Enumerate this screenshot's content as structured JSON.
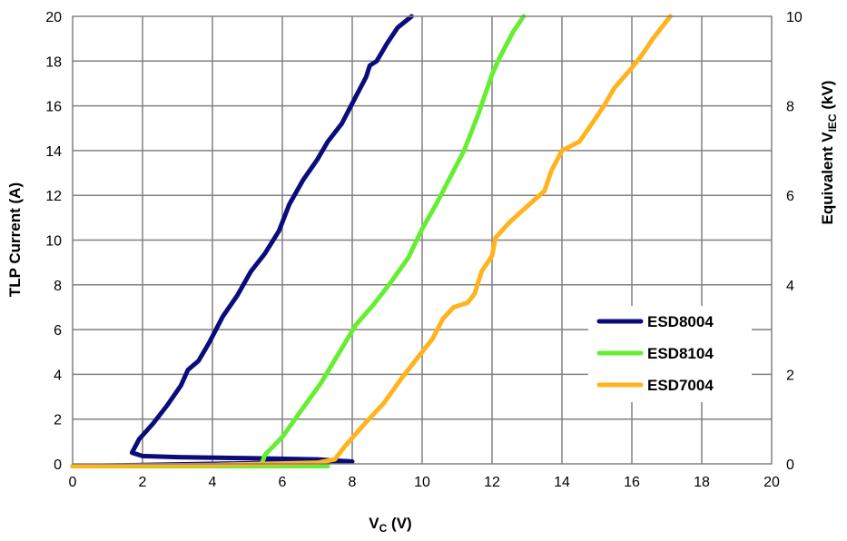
{
  "chart_data": {
    "type": "line",
    "xlabel_main": "V",
    "xlabel_sub": "C",
    "xlabel_unit": " (V)",
    "ylabel": "TLP Current (A)",
    "y2label_main": "Equivalent V",
    "y2label_sub": "IEC",
    "y2label_unit": " (kV)",
    "xlim": [
      0,
      20
    ],
    "ylim": [
      0,
      20
    ],
    "y2lim": [
      0,
      10
    ],
    "x_ticks": [
      0,
      2,
      4,
      6,
      8,
      10,
      12,
      14,
      16,
      18,
      20
    ],
    "y_ticks": [
      0,
      2,
      4,
      6,
      8,
      10,
      12,
      14,
      16,
      18,
      20
    ],
    "y2_ticks": [
      0,
      2,
      4,
      6,
      8,
      10
    ],
    "grid": true,
    "legend_position": "right",
    "series": [
      {
        "name": "ESD8004",
        "color": "#0b0c7c",
        "points": [
          [
            0,
            -0.1
          ],
          [
            2,
            -0.05
          ],
          [
            4,
            0
          ],
          [
            6,
            0.05
          ],
          [
            7.5,
            0.1
          ],
          [
            8,
            0.1
          ],
          [
            7,
            0.2
          ],
          [
            5,
            0.25
          ],
          [
            3,
            0.3
          ],
          [
            2,
            0.35
          ],
          [
            1.7,
            0.5
          ],
          [
            1.9,
            1.1
          ],
          [
            2.3,
            1.8
          ],
          [
            2.7,
            2.6
          ],
          [
            3.1,
            3.5
          ],
          [
            3.3,
            4.2
          ],
          [
            3.6,
            4.6
          ],
          [
            3.9,
            5.4
          ],
          [
            4.3,
            6.6
          ],
          [
            4.7,
            7.5
          ],
          [
            5.1,
            8.6
          ],
          [
            5.5,
            9.4
          ],
          [
            5.9,
            10.4
          ],
          [
            6.2,
            11.6
          ],
          [
            6.6,
            12.7
          ],
          [
            7.0,
            13.6
          ],
          [
            7.3,
            14.4
          ],
          [
            7.7,
            15.2
          ],
          [
            8.1,
            16.4
          ],
          [
            8.4,
            17.3
          ],
          [
            8.5,
            17.8
          ],
          [
            8.7,
            18.0
          ],
          [
            9.0,
            18.8
          ],
          [
            9.3,
            19.5
          ],
          [
            9.7,
            20.0
          ]
        ]
      },
      {
        "name": "ESD8104",
        "color": "#66ee33",
        "points": [
          [
            0,
            -0.1
          ],
          [
            4,
            -0.1
          ],
          [
            7.3,
            -0.1
          ],
          [
            5.4,
            -0.05
          ],
          [
            5.5,
            0.4
          ],
          [
            6,
            1.2
          ],
          [
            6.5,
            2.3
          ],
          [
            7.1,
            3.6
          ],
          [
            7.6,
            4.9
          ],
          [
            8.1,
            6.2
          ],
          [
            8.6,
            7.1
          ],
          [
            9.1,
            8.1
          ],
          [
            9.6,
            9.2
          ],
          [
            10.0,
            10.5
          ],
          [
            10.4,
            11.6
          ],
          [
            10.8,
            12.8
          ],
          [
            11.2,
            14.0
          ],
          [
            11.6,
            15.6
          ],
          [
            12.0,
            17.4
          ],
          [
            12.2,
            18.1
          ],
          [
            12.6,
            19.3
          ],
          [
            12.9,
            20.0
          ]
        ]
      },
      {
        "name": "ESD7004",
        "color": "#ffb41e",
        "points": [
          [
            0,
            -0.1
          ],
          [
            4,
            -0.05
          ],
          [
            7,
            0.05
          ],
          [
            7.5,
            0.2
          ],
          [
            7.8,
            0.8
          ],
          [
            8.3,
            1.7
          ],
          [
            8.9,
            2.7
          ],
          [
            9.4,
            3.8
          ],
          [
            9.9,
            4.8
          ],
          [
            10.3,
            5.6
          ],
          [
            10.6,
            6.5
          ],
          [
            10.9,
            7.0
          ],
          [
            11.3,
            7.2
          ],
          [
            11.5,
            7.6
          ],
          [
            11.7,
            8.6
          ],
          [
            12.0,
            9.3
          ],
          [
            12.1,
            10.1
          ],
          [
            12.5,
            10.8
          ],
          [
            13.0,
            11.5
          ],
          [
            13.5,
            12.2
          ],
          [
            13.7,
            13.1
          ],
          [
            14.0,
            14.0
          ],
          [
            14.5,
            14.4
          ],
          [
            14.9,
            15.3
          ],
          [
            15.2,
            16.0
          ],
          [
            15.5,
            16.8
          ],
          [
            16.0,
            17.7
          ],
          [
            16.3,
            18.3
          ],
          [
            16.6,
            19.0
          ],
          [
            17.1,
            20.0
          ]
        ]
      }
    ],
    "legend": [
      {
        "label": "ESD8004",
        "color": "#0b0c7c"
      },
      {
        "label": "ESD8104",
        "color": "#66ee33"
      },
      {
        "label": "ESD7004",
        "color": "#ffb41e"
      }
    ]
  }
}
